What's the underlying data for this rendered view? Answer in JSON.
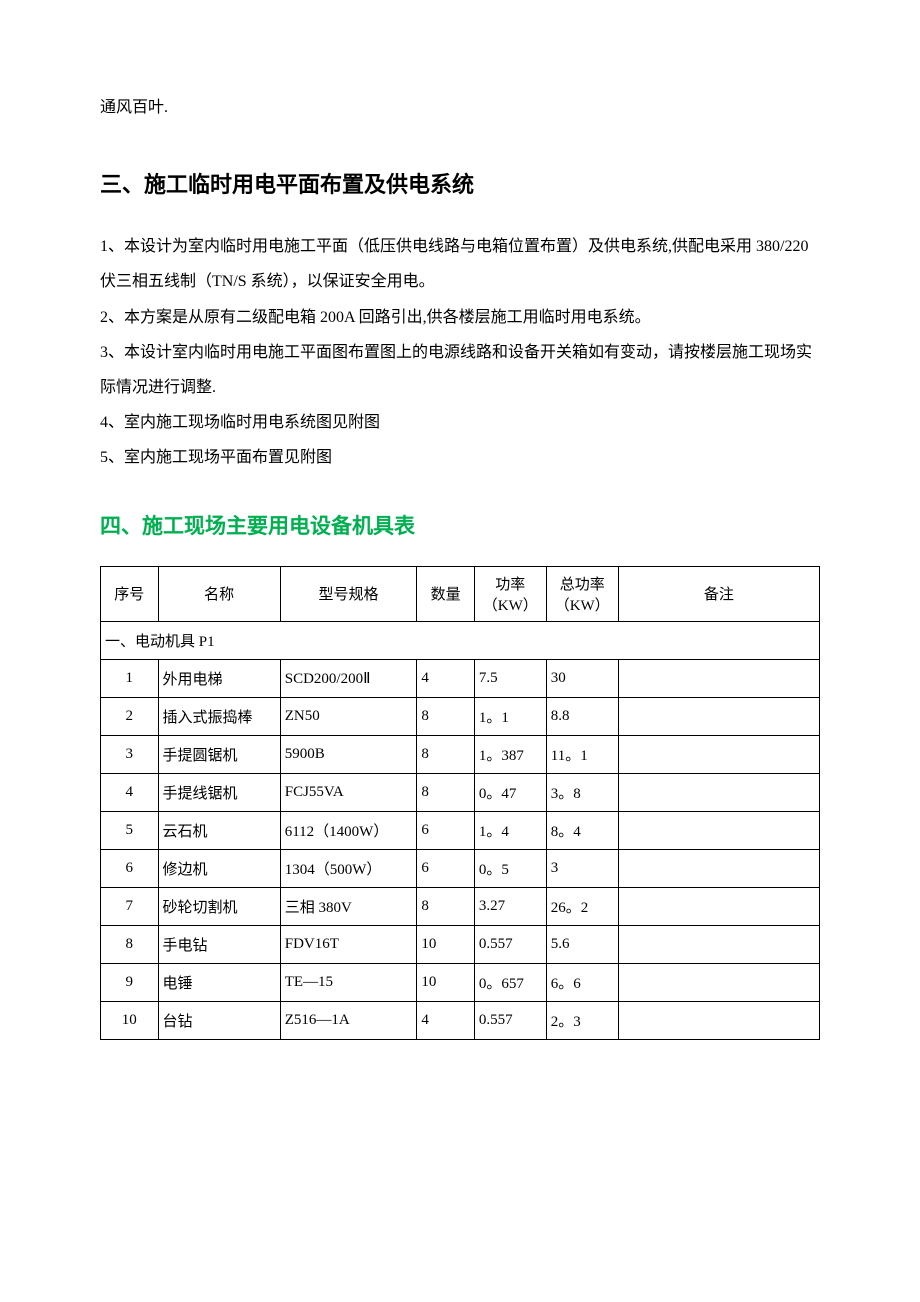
{
  "intro_fragment": "通风百叶.",
  "section3": {
    "title": "三、施工临时用电平面布置及供电系统",
    "paras": [
      "1、本设计为室内临时用电施工平面（低压供电线路与电箱位置布置）及供电系统,供配电采用 380/220 伏三相五线制（TN/S 系统），以保证安全用电。",
      "2、本方案是从原有二级配电箱 200A 回路引出,供各楼层施工用临时用电系统。",
      "3、本设计室内临时用电施工平面图布置图上的电源线路和设备开关箱如有变动，请按楼层施工现场实际情况进行调整.",
      "4、室内施工现场临时用电系统图见附图",
      "5、室内施工现场平面布置见附图"
    ]
  },
  "section4": {
    "title": "四、施工现场主要用电设备机具表",
    "columns": [
      "序号",
      "名称",
      "型号规格",
      "数量",
      "功率（KW）",
      "总功率（KW）",
      "备注"
    ],
    "subsection": "一、电动机具 P1",
    "rows": [
      {
        "idx": "1",
        "name": "外用电梯",
        "model": "SCD200/200Ⅱ",
        "qty": "4",
        "pw": "7.5",
        "tpw": "30",
        "note": ""
      },
      {
        "idx": "2",
        "name": "插入式振捣棒",
        "model": "ZN50",
        "qty": "8",
        "pw": "1。1",
        "tpw": "8.8",
        "note": ""
      },
      {
        "idx": "3",
        "name": "手提圆锯机",
        "model": "5900B",
        "qty": "8",
        "pw": "1。387",
        "tpw": "11。1",
        "note": ""
      },
      {
        "idx": "4",
        "name": "手提线锯机",
        "model": "FCJ55VA",
        "qty": "8",
        "pw": "0。47",
        "tpw": "3。8",
        "note": ""
      },
      {
        "idx": "5",
        "name": "云石机",
        "model": "6112（1400W）",
        "qty": "6",
        "pw": "1。4",
        "tpw": "8。4",
        "note": ""
      },
      {
        "idx": "6",
        "name": "修边机",
        "model": "1304（500W）",
        "qty": "6",
        "pw": "0。5",
        "tpw": "3",
        "note": ""
      },
      {
        "idx": "7",
        "name": "砂轮切割机",
        "model": "三相 380V",
        "qty": "8",
        "pw": "3.27",
        "tpw": "26。2",
        "note": ""
      },
      {
        "idx": "8",
        "name": "手电钻",
        "model": "FDV16T",
        "qty": "10",
        "pw": "0.557",
        "tpw": "5.6",
        "note": ""
      },
      {
        "idx": "9",
        "name": "电锤",
        "model": "TE—15",
        "qty": "10",
        "pw": "0。657",
        "tpw": "6。6",
        "note": ""
      },
      {
        "idx": "10",
        "name": "台钻",
        "model": "Z516—1A",
        "qty": "4",
        "pw": "0.557",
        "tpw": "2。3",
        "note": ""
      }
    ]
  },
  "colors": {
    "text": "#000000",
    "heading_green": "#00b050",
    "table_border": "#000000",
    "background": "#ffffff"
  },
  "typography": {
    "body_fontsize_pt": 12,
    "heading_fontsize_pt": 16,
    "line_height": 2.2,
    "heading_font": "SimHei",
    "body_font": "SimSun"
  }
}
